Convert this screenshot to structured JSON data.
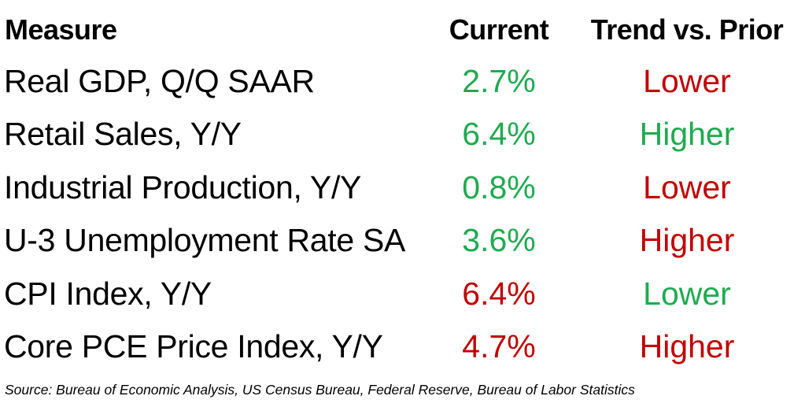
{
  "table": {
    "headers": {
      "measure": "Measure",
      "current": "Current",
      "trend": "Trend vs. Prior"
    },
    "rows": [
      {
        "measure": "Real GDP, Q/Q SAAR",
        "current": "2.7%",
        "current_color": "#1faa50",
        "trend": "Lower",
        "trend_color": "#c00000"
      },
      {
        "measure": "Retail Sales, Y/Y",
        "current": "6.4%",
        "current_color": "#1faa50",
        "trend": "Higher",
        "trend_color": "#1faa50"
      },
      {
        "measure": "Industrial Production, Y/Y",
        "current": "0.8%",
        "current_color": "#1faa50",
        "trend": "Lower",
        "trend_color": "#c00000"
      },
      {
        "measure": "U-3 Unemployment Rate SA",
        "current": "3.6%",
        "current_color": "#1faa50",
        "trend": "Higher",
        "trend_color": "#c00000"
      },
      {
        "measure": "CPI Index, Y/Y",
        "current": "6.4%",
        "current_color": "#c00000",
        "trend": "Lower",
        "trend_color": "#1faa50"
      },
      {
        "measure": "Core PCE Price Index, Y/Y",
        "current": "4.7%",
        "current_color": "#c00000",
        "trend": "Higher",
        "trend_color": "#c00000"
      }
    ]
  },
  "source": "Source: Bureau of Economic Analysis, US Census Bureau, Federal Reserve, Bureau of Labor Statistics"
}
